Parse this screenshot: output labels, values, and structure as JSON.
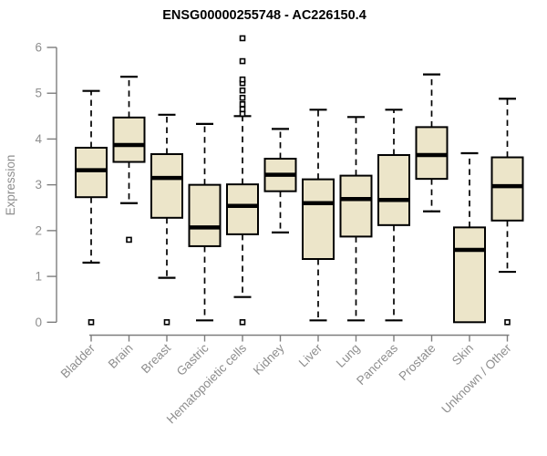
{
  "chart_data": {
    "type": "boxplot",
    "title": "ENSG00000255748 - AC226150.4",
    "ylabel": "Expression",
    "xlabel": "",
    "ylim": [
      0,
      6
    ],
    "yticks": [
      0,
      1,
      2,
      3,
      4,
      5,
      6
    ],
    "grid": false,
    "legend": "none",
    "categories": [
      "Bladder",
      "Brain",
      "Breast",
      "Gastric",
      "Hematopoietic cells",
      "Kidney",
      "Liver",
      "Lung",
      "Pancreas",
      "Prostate",
      "Skin",
      "Unknown / Other"
    ],
    "boxes": [
      {
        "category": "Bladder",
        "whisker_low": 1.3,
        "q1": 2.73,
        "median": 3.32,
        "q3": 3.81,
        "whisker_high": 5.05,
        "outliers": [
          0
        ]
      },
      {
        "category": "Brain",
        "whisker_low": 2.6,
        "q1": 3.5,
        "median": 3.87,
        "q3": 4.47,
        "whisker_high": 5.36,
        "outliers": [
          1.8
        ]
      },
      {
        "category": "Breast",
        "whisker_low": 0.97,
        "q1": 2.28,
        "median": 3.15,
        "q3": 3.67,
        "whisker_high": 4.53,
        "outliers": [
          0
        ]
      },
      {
        "category": "Gastric",
        "whisker_low": 0.04,
        "q1": 1.66,
        "median": 2.07,
        "q3": 3.0,
        "whisker_high": 4.33,
        "outliers": []
      },
      {
        "category": "Hematopoietic cells",
        "whisker_low": 0.55,
        "q1": 1.92,
        "median": 2.54,
        "q3": 3.01,
        "whisker_high": 4.5,
        "outliers": [
          0,
          4.55,
          4.65,
          4.76,
          4.9,
          5.06,
          5.22,
          5.3,
          5.7,
          6.2
        ]
      },
      {
        "category": "Kidney",
        "whisker_low": 1.96,
        "q1": 2.86,
        "median": 3.22,
        "q3": 3.57,
        "whisker_high": 4.22,
        "outliers": []
      },
      {
        "category": "Liver",
        "whisker_low": 0.04,
        "q1": 1.38,
        "median": 2.6,
        "q3": 3.12,
        "whisker_high": 4.64,
        "outliers": []
      },
      {
        "category": "Lung",
        "whisker_low": 0.04,
        "q1": 1.87,
        "median": 2.69,
        "q3": 3.2,
        "whisker_high": 4.48,
        "outliers": []
      },
      {
        "category": "Pancreas",
        "whisker_low": 0.04,
        "q1": 2.12,
        "median": 2.67,
        "q3": 3.65,
        "whisker_high": 4.64,
        "outliers": []
      },
      {
        "category": "Prostate",
        "whisker_low": 2.42,
        "q1": 3.13,
        "median": 3.65,
        "q3": 4.26,
        "whisker_high": 5.41,
        "outliers": []
      },
      {
        "category": "Skin",
        "whisker_low": 0.0,
        "q1": 0.0,
        "median": 1.58,
        "q3": 2.07,
        "whisker_high": 3.69,
        "outliers": []
      },
      {
        "category": "Unknown / Other",
        "whisker_low": 1.1,
        "q1": 2.22,
        "median": 2.97,
        "q3": 3.6,
        "whisker_high": 4.88,
        "outliers": [
          0
        ]
      }
    ],
    "colors": {
      "box_fill": "#ece5c9",
      "box_stroke": "#000000",
      "median": "#000000",
      "whisker": "#000000",
      "outlier_stroke": "#000000",
      "outlier_fill": "#ffffff",
      "axis_line": "#7d7d7d",
      "tick_text": "#8e8e8e",
      "title_text": "#000000",
      "background": "#ffffff"
    }
  }
}
